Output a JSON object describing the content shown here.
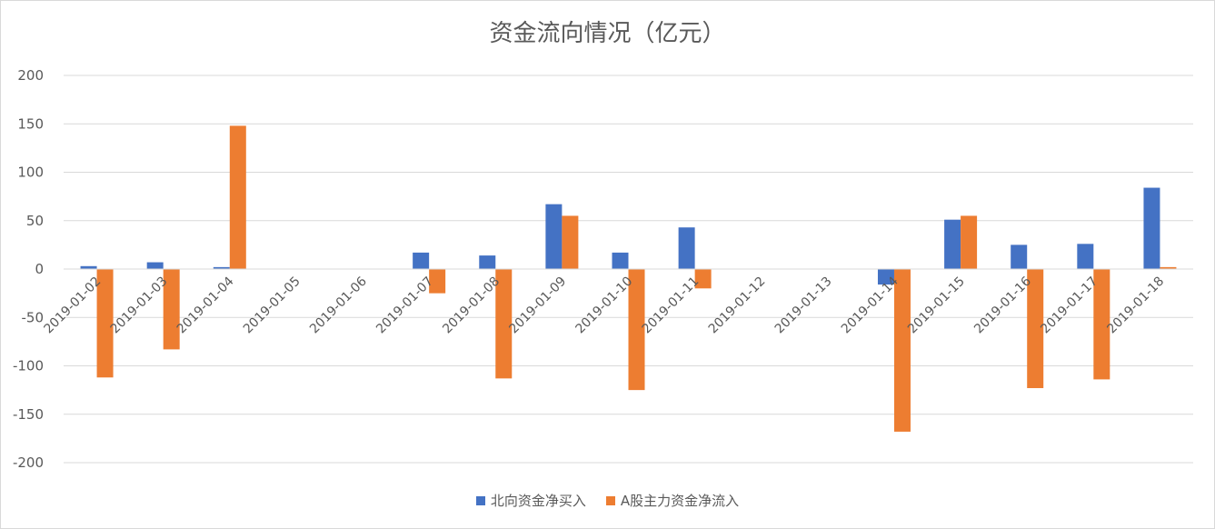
{
  "chart_data": {
    "type": "bar",
    "title": "资金流向情况（亿元）",
    "categories": [
      "2019-01-02",
      "2019-01-03",
      "2019-01-04",
      "2019-01-05",
      "2019-01-06",
      "2019-01-07",
      "2019-01-08",
      "2019-01-09",
      "2019-01-10",
      "2019-01-11",
      "2019-01-12",
      "2019-01-13",
      "2019-01-14",
      "2019-01-15",
      "2019-01-16",
      "2019-01-17",
      "2019-01-18"
    ],
    "series": [
      {
        "name": "北向资金净买入",
        "color": "#4472c4",
        "values": [
          3,
          7,
          2,
          0,
          0,
          17,
          14,
          67,
          17,
          43,
          0,
          0,
          -16,
          51,
          25,
          26,
          84
        ]
      },
      {
        "name": "A股主力资金净流入",
        "color": "#ed7d31",
        "values": [
          -112,
          -83,
          148,
          0,
          0,
          -25,
          -113,
          55,
          -125,
          -20,
          0,
          0,
          -168,
          55,
          -123,
          -114,
          2
        ]
      }
    ],
    "yticks": [
      200,
      150,
      100,
      50,
      0,
      -50,
      -100,
      -150,
      -200
    ],
    "ylim": [
      -200,
      200
    ],
    "grid": true,
    "legend_position": "bottom"
  }
}
